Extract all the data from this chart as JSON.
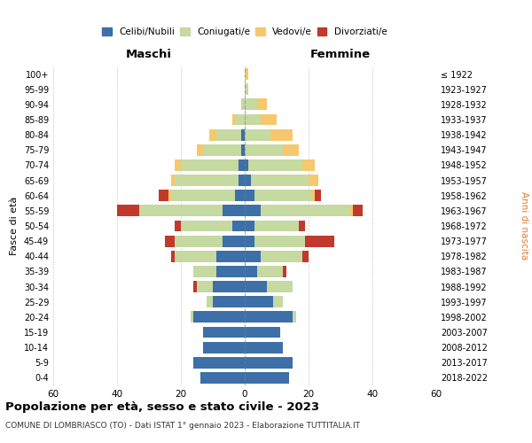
{
  "age_groups": [
    "0-4",
    "5-9",
    "10-14",
    "15-19",
    "20-24",
    "25-29",
    "30-34",
    "35-39",
    "40-44",
    "45-49",
    "50-54",
    "55-59",
    "60-64",
    "65-69",
    "70-74",
    "75-79",
    "80-84",
    "85-89",
    "90-94",
    "95-99",
    "100+"
  ],
  "birth_years": [
    "2018-2022",
    "2013-2017",
    "2008-2012",
    "2003-2007",
    "1998-2002",
    "1993-1997",
    "1988-1992",
    "1983-1987",
    "1978-1982",
    "1973-1977",
    "1968-1972",
    "1963-1967",
    "1958-1962",
    "1953-1957",
    "1948-1952",
    "1943-1947",
    "1938-1942",
    "1933-1937",
    "1928-1932",
    "1923-1927",
    "≤ 1922"
  ],
  "maschi": {
    "celibi": [
      14,
      16,
      13,
      13,
      16,
      10,
      10,
      9,
      9,
      7,
      4,
      7,
      3,
      2,
      2,
      1,
      1,
      0,
      0,
      0,
      0
    ],
    "coniugati": [
      0,
      0,
      0,
      0,
      1,
      2,
      5,
      7,
      13,
      15,
      16,
      26,
      20,
      20,
      18,
      12,
      8,
      3,
      1,
      0,
      0
    ],
    "vedovi": [
      0,
      0,
      0,
      0,
      0,
      0,
      0,
      0,
      0,
      0,
      0,
      0,
      1,
      1,
      2,
      2,
      2,
      1,
      0,
      0,
      0
    ],
    "divorziati": [
      0,
      0,
      0,
      0,
      0,
      0,
      1,
      0,
      1,
      3,
      2,
      7,
      3,
      0,
      0,
      0,
      0,
      0,
      0,
      0,
      0
    ]
  },
  "femmine": {
    "nubili": [
      14,
      15,
      12,
      11,
      15,
      9,
      7,
      4,
      5,
      3,
      3,
      5,
      3,
      2,
      1,
      0,
      0,
      0,
      0,
      0,
      0
    ],
    "coniugate": [
      0,
      0,
      0,
      0,
      1,
      3,
      8,
      8,
      13,
      16,
      14,
      28,
      18,
      18,
      17,
      12,
      8,
      5,
      4,
      1,
      0
    ],
    "vedove": [
      0,
      0,
      0,
      0,
      0,
      0,
      0,
      0,
      0,
      0,
      0,
      1,
      1,
      3,
      4,
      5,
      7,
      5,
      3,
      0,
      1
    ],
    "divorziate": [
      0,
      0,
      0,
      0,
      0,
      0,
      0,
      1,
      2,
      9,
      2,
      3,
      2,
      0,
      0,
      0,
      0,
      0,
      0,
      0,
      0
    ]
  },
  "colors": {
    "celibi": "#3d6fa8",
    "coniugati": "#c5d9a0",
    "vedovi": "#f5c86e",
    "divorziati": "#c0392b"
  },
  "xlim": 60,
  "title": "Popolazione per età, sesso e stato civile - 2023",
  "subtitle": "COMUNE DI LOMBRIASCO (TO) - Dati ISTAT 1° gennaio 2023 - Elaborazione TUTTITALIA.IT",
  "ylabel_left": "Fasce di età",
  "ylabel_right": "Anni di nascita",
  "xlabel_left": "Maschi",
  "xlabel_right": "Femmine"
}
